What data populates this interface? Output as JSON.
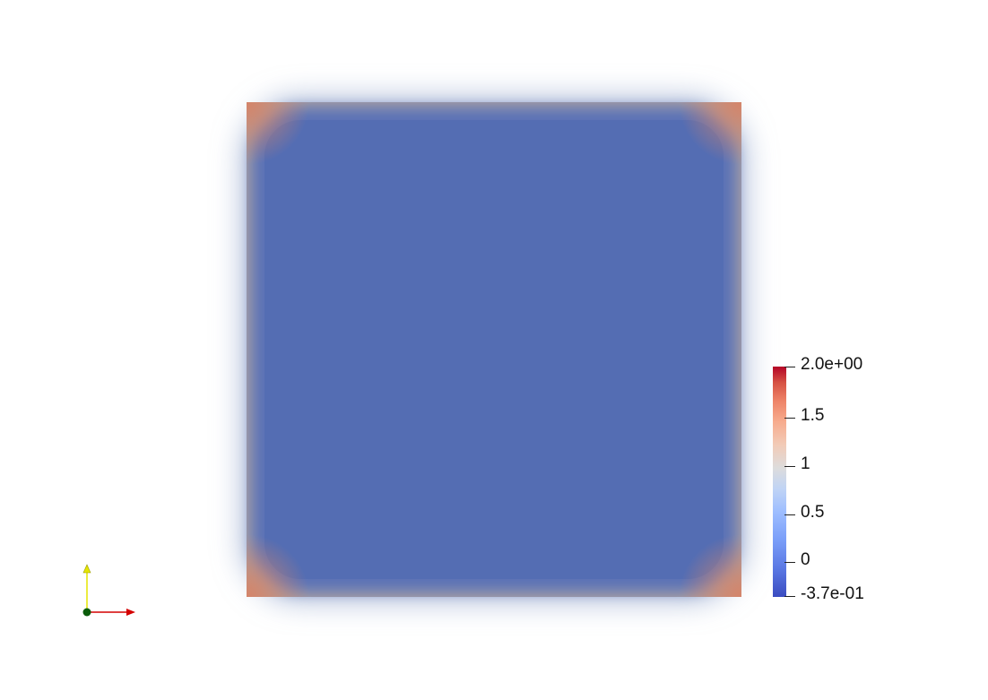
{
  "colorbar": {
    "max_label": "2.0e+00",
    "min_label": "-3.7e-01",
    "ticks": [
      "1.5",
      "1",
      "0.5",
      "0"
    ],
    "colormap": "coolwarm",
    "range": [
      -0.37,
      2.0
    ]
  },
  "field": {
    "interior_color": "#546db3",
    "edge_color": "#bca18d",
    "corner_color": "#d4846a"
  },
  "axes": {
    "x_axis_color": "#d40000",
    "y_axis_color": "#e6e600",
    "origin_color": "#0a5c0a"
  }
}
